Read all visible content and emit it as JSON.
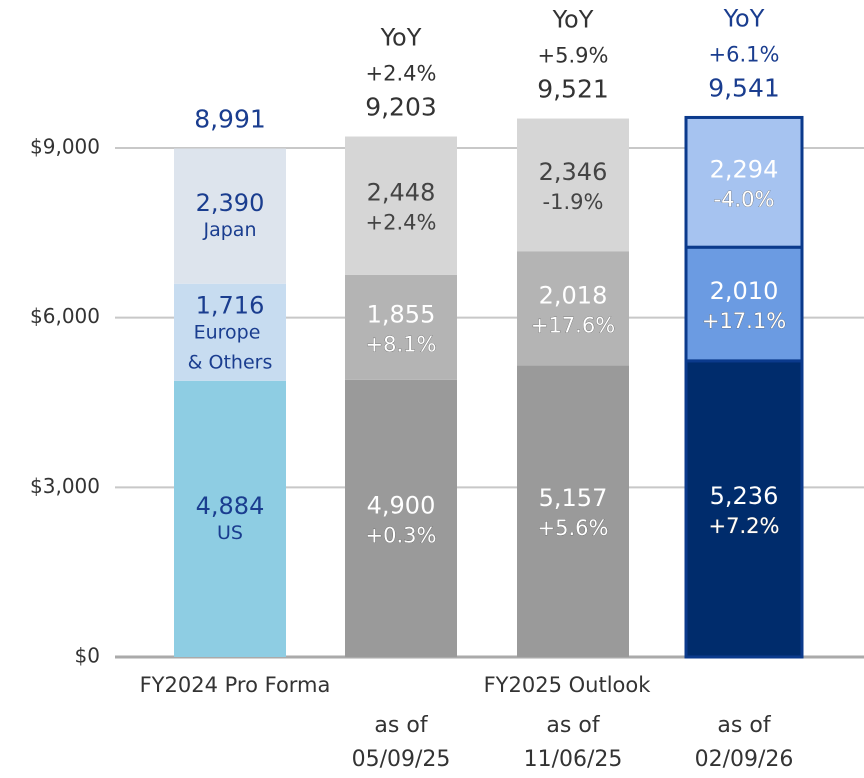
{
  "chart_data": {
    "type": "stacked_bar",
    "groups": [
      "FY2024 Pro Forma",
      "FY2025 Outlook"
    ],
    "date_prefix": "as of",
    "categories": [
      null,
      "05/09/25",
      "11/06/25",
      "02/09/26"
    ],
    "change_heading": "YoY",
    "series": [
      {
        "name": "US",
        "colors": [
          "#8ecde3",
          "#9a9a9a",
          "#9a9a9a",
          "#002c6c"
        ],
        "values": [
          4884,
          4900,
          5157,
          5236
        ],
        "value_labels": [
          "4,884",
          "4,900",
          "5,157",
          "5,236"
        ],
        "changes": [
          null,
          0.3,
          5.6,
          7.2
        ],
        "change_labels": [
          null,
          "+0.3%",
          "+5.6%",
          "+7.2%"
        ]
      },
      {
        "name": "Europe & Others",
        "colors": [
          "#c7dcf0",
          "#b4b4b4",
          "#b4b4b4",
          "#6b9be2"
        ],
        "values": [
          1716,
          1855,
          2018,
          2010
        ],
        "value_labels": [
          "1,716",
          "1,855",
          "2,018",
          "2,010"
        ],
        "changes": [
          null,
          8.1,
          17.6,
          17.1
        ],
        "change_labels": [
          null,
          "+8.1%",
          "+17.6%",
          "+17.1%"
        ]
      },
      {
        "name": "Japan",
        "colors": [
          "#dde4ed",
          "#d6d6d6",
          "#d6d6d6",
          "#a6c3f0"
        ],
        "values": [
          2390,
          2448,
          2346,
          2294
        ],
        "value_labels": [
          "2,390",
          "2,448",
          "2,346",
          "2,294"
        ],
        "changes": [
          null,
          2.4,
          -1.9,
          -4.0
        ],
        "change_labels": [
          null,
          "+2.4%",
          "-1.9%",
          "-4.0%"
        ]
      }
    ],
    "totals": [
      8991,
      9203,
      9521,
      9541
    ],
    "total_labels": [
      "8,991",
      "9,203",
      "9,521",
      "9,541"
    ],
    "total_changes": [
      null,
      2.4,
      5.9,
      6.1
    ],
    "total_change_labels": [
      null,
      "+2.4%",
      "+5.9%",
      "+6.1%"
    ],
    "ylim": [
      0,
      9000
    ],
    "yticks": [
      {
        "value": 0,
        "label": "$0"
      },
      {
        "value": 3000,
        "label": "$3,000"
      },
      {
        "value": 6000,
        "label": "$6,000"
      },
      {
        "value": 9000,
        "label": "$9,000"
      }
    ],
    "grid": true
  }
}
